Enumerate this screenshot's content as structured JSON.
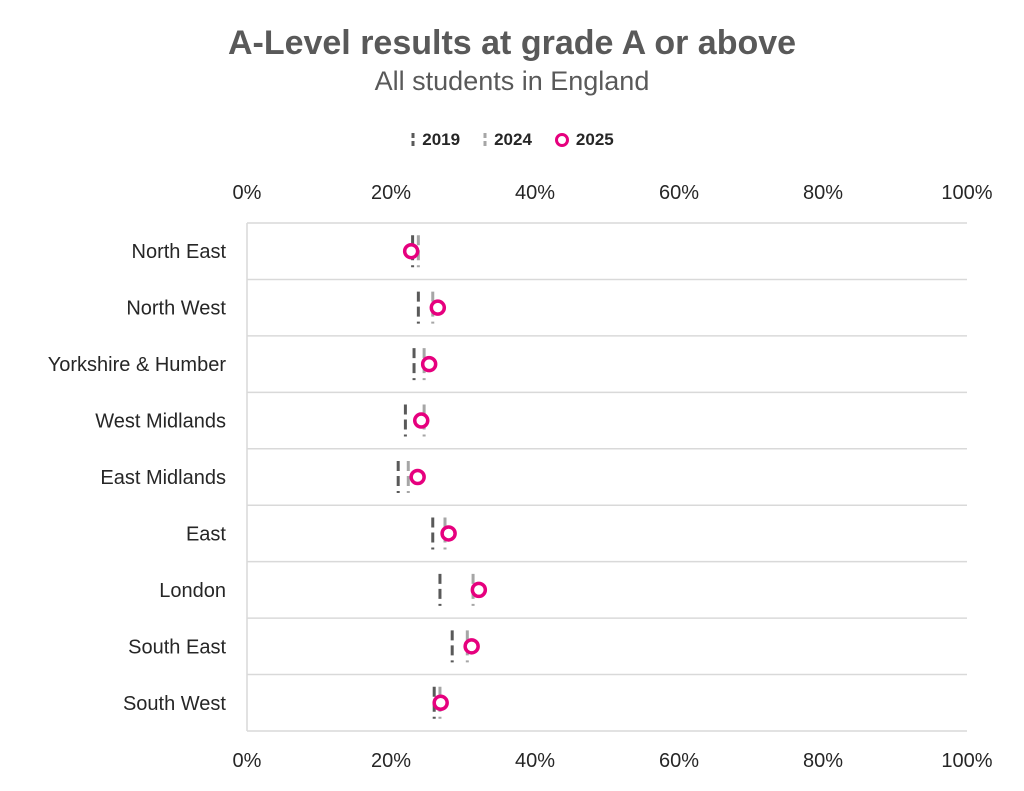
{
  "title": "A-Level results at grade A or above",
  "subtitle": "All students in England",
  "colors": {
    "y2019": "#595959",
    "y2024": "#a6a6a6",
    "y2025": "#e6007e",
    "grid": "#d9d9d9"
  },
  "chart_data": {
    "type": "scatter",
    "title": "A-Level results at grade A or above",
    "subtitle": "All students in England",
    "categories": [
      "North East",
      "North West",
      "Yorkshire & Humber",
      "West Midlands",
      "East Midlands",
      "East ",
      "London",
      "South East",
      "South West"
    ],
    "series": [
      {
        "name": "2019",
        "marker": "dash-dark",
        "values": [
          23.0,
          23.8,
          23.2,
          22.0,
          21.0,
          25.8,
          26.8,
          28.5,
          26.0
        ]
      },
      {
        "name": "2024",
        "marker": "dash-light",
        "values": [
          23.8,
          25.8,
          24.6,
          24.6,
          22.4,
          27.5,
          31.4,
          30.6,
          26.8
        ]
      },
      {
        "name": "2025",
        "marker": "circle",
        "values": [
          22.8,
          26.5,
          25.3,
          24.2,
          23.7,
          28.0,
          32.2,
          31.2,
          26.9
        ]
      }
    ],
    "xlim": [
      0,
      100
    ],
    "x_ticks": [
      "0%",
      "20%",
      "40%",
      "60%",
      "80%",
      "100%"
    ],
    "x_tick_values": [
      0,
      20,
      40,
      60,
      80,
      100
    ],
    "xlabel": "",
    "ylabel": "",
    "grid": true,
    "legend_position": "top"
  }
}
